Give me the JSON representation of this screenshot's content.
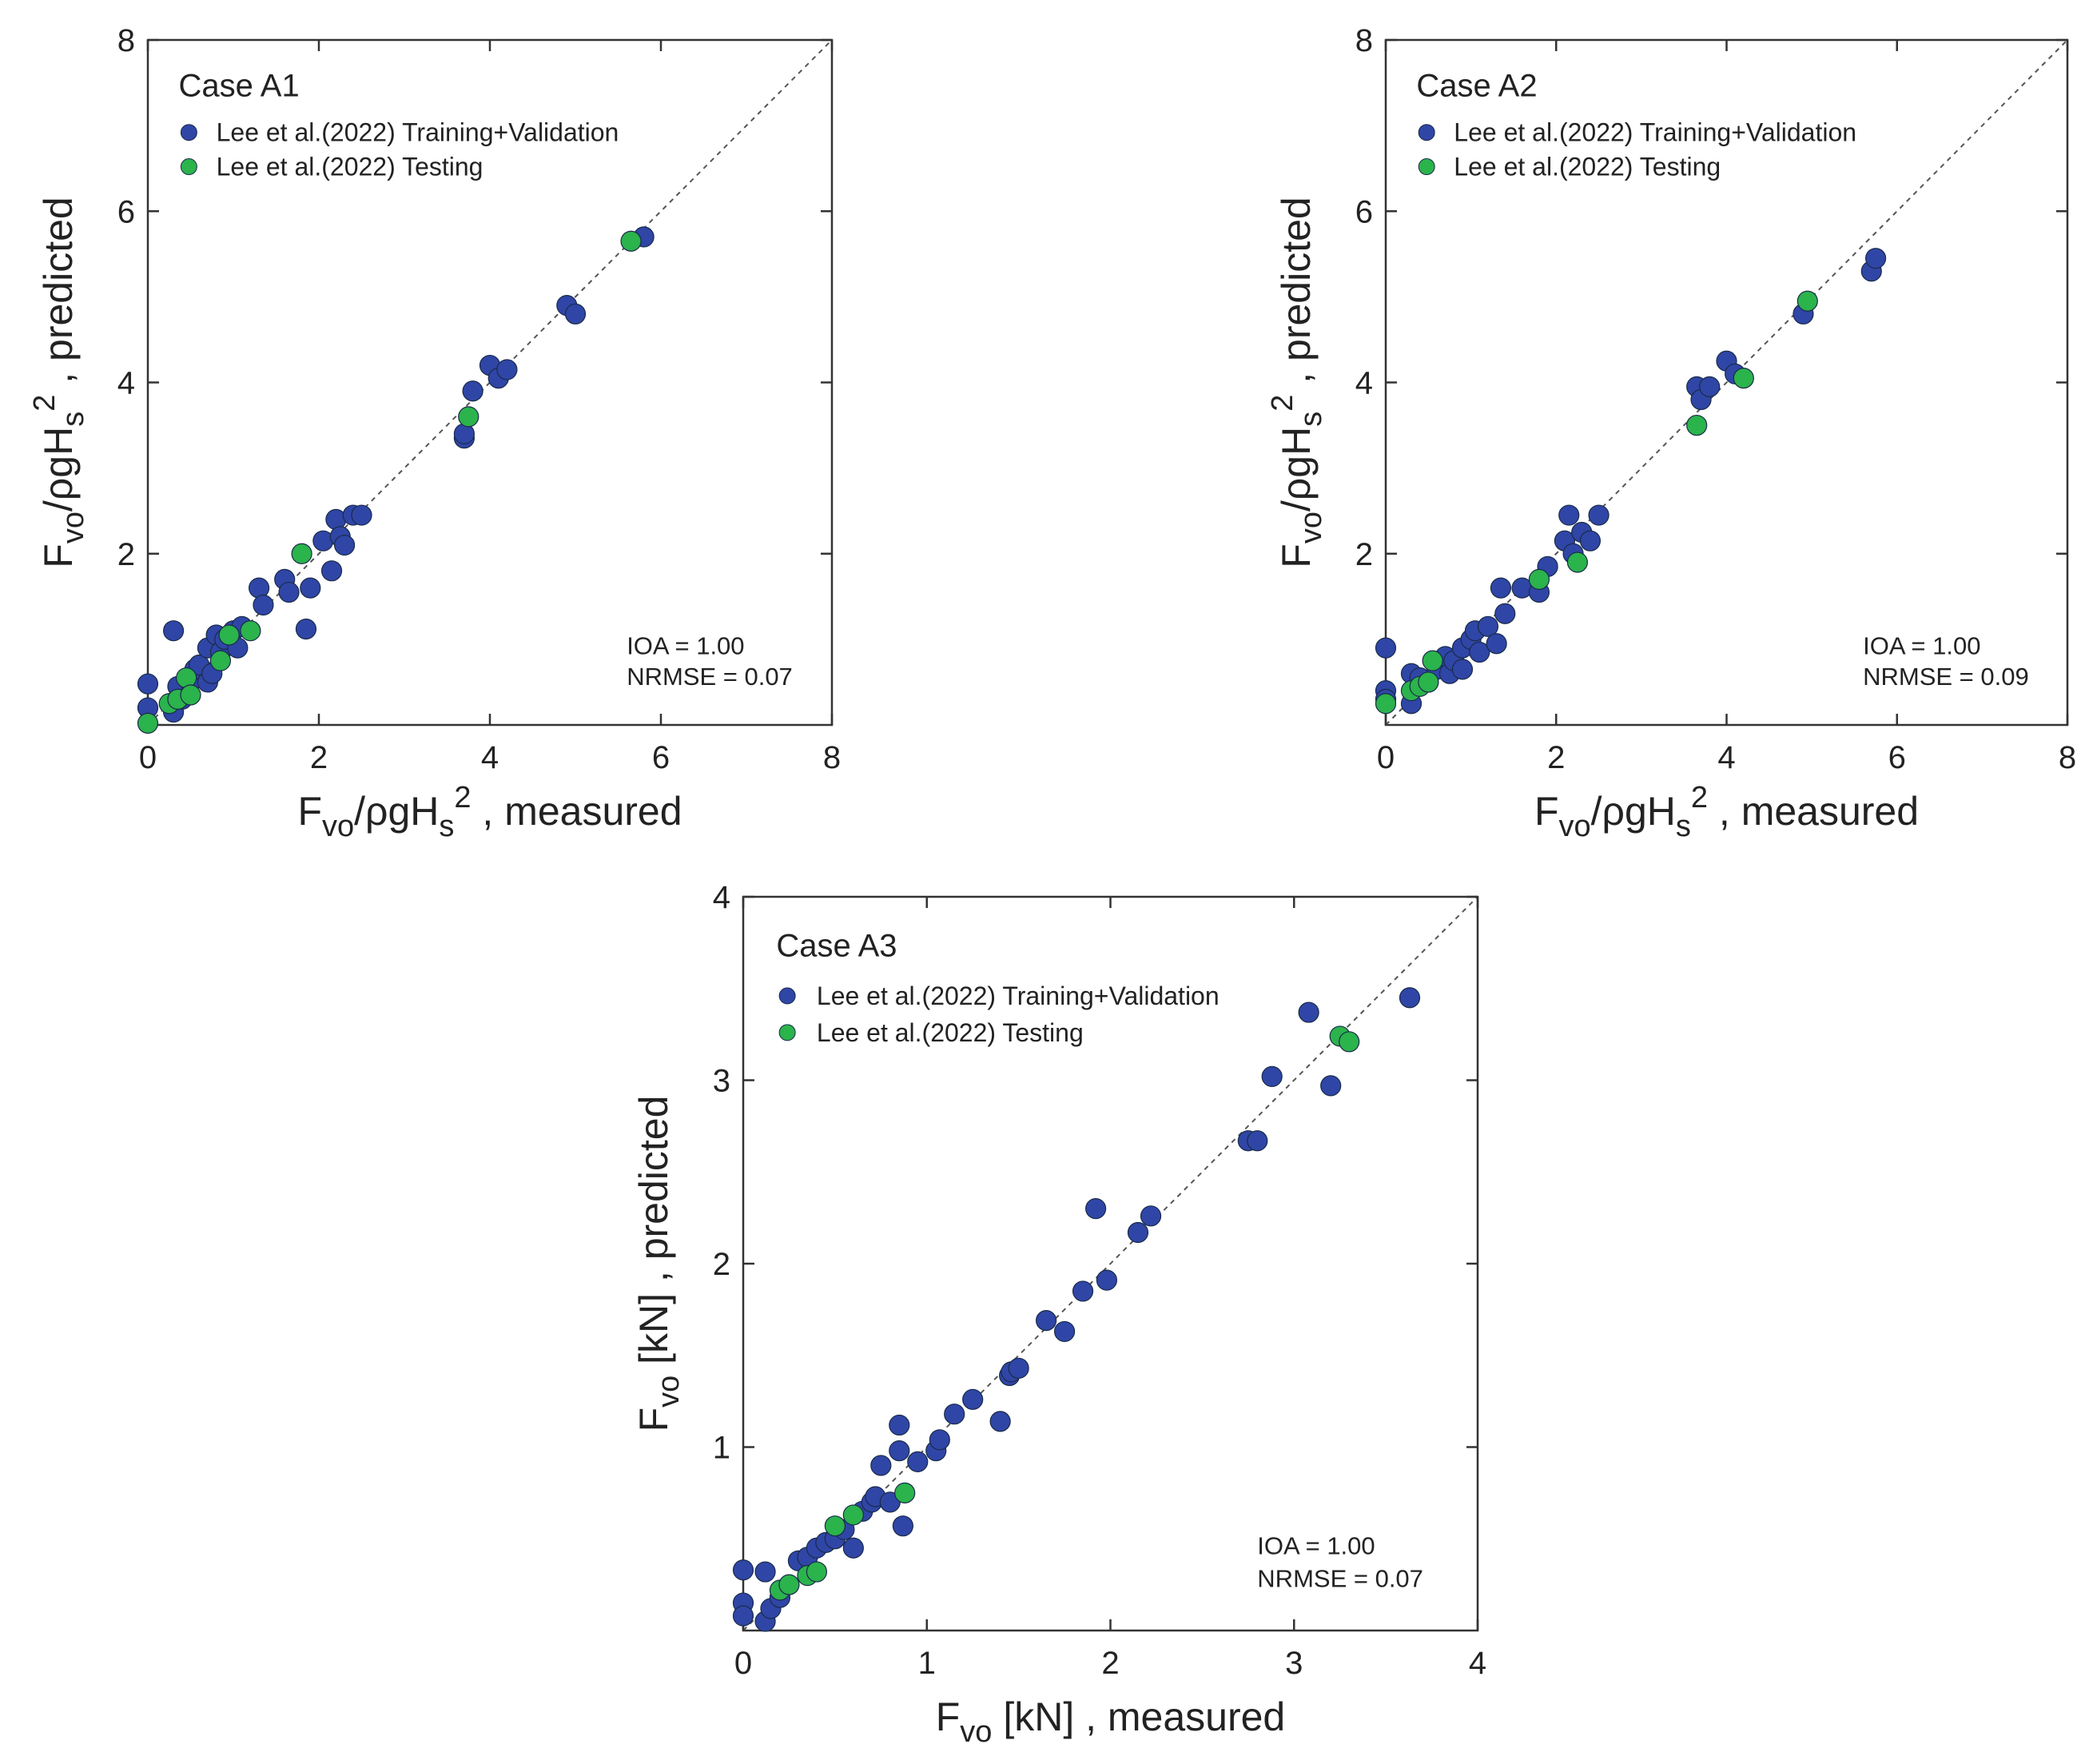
{
  "chart_data": [
    {
      "type": "scatter",
      "title": "Case A1",
      "xlabel": [
        {
          "text": "F"
        },
        {
          "text": "vo",
          "script": "sub"
        },
        {
          "text": "/ρgH"
        },
        {
          "text": "s",
          "script": "sub"
        },
        {
          "text": "2",
          "script": "sup"
        },
        {
          "text": " , measured"
        }
      ],
      "ylabel": [
        {
          "text": "F"
        },
        {
          "text": "vo",
          "script": "sub"
        },
        {
          "text": "/ρgH"
        },
        {
          "text": "s",
          "script": "sub"
        },
        {
          "text": "2",
          "script": "sup"
        },
        {
          "text": " , predicted"
        }
      ],
      "xlim": [
        0,
        8
      ],
      "ylim": [
        0,
        8
      ],
      "xticks": [
        0,
        2,
        4,
        6,
        8
      ],
      "yticks": [
        2,
        4,
        6,
        8
      ],
      "annotations": [
        "IOA = 1.00",
        "NRMSE = 0.07"
      ],
      "legend": "upper left",
      "series": [
        {
          "name": "Lee et al.(2022) Training+Validation",
          "color": "#2f46a6",
          "x": [
            0,
            0,
            0.3,
            0.3,
            0.35,
            0.4,
            0.5,
            0.55,
            0.6,
            0.7,
            0.7,
            0.75,
            0.8,
            0.85,
            0.9,
            1.0,
            1.05,
            1.1,
            1.3,
            1.35,
            1.6,
            1.65,
            1.85,
            1.9,
            2.05,
            2.15,
            2.2,
            2.25,
            2.3,
            2.4,
            2.5,
            3.7,
            3.7,
            3.8,
            4.0,
            4.1,
            4.2,
            4.9,
            5.0,
            5.8
          ],
          "values": [
            0.48,
            0.2,
            1.1,
            0.15,
            0.45,
            0.3,
            0.5,
            0.65,
            0.7,
            0.9,
            0.5,
            0.6,
            1.05,
            0.85,
            1.0,
            1.1,
            0.9,
            1.15,
            1.6,
            1.4,
            1.7,
            1.55,
            1.12,
            1.6,
            2.15,
            1.8,
            2.4,
            2.2,
            2.1,
            2.45,
            2.45,
            3.35,
            3.4,
            3.9,
            4.2,
            4.05,
            4.15,
            4.9,
            4.8,
            5.7
          ]
        },
        {
          "name": "Lee et al.(2022) Testing",
          "color": "#2bb34c",
          "x": [
            0,
            0.25,
            0.35,
            0.45,
            0.5,
            0.85,
            0.95,
            1.2,
            1.8,
            3.75,
            5.65
          ],
          "values": [
            0.02,
            0.25,
            0.3,
            0.55,
            0.35,
            0.75,
            1.05,
            1.1,
            2.0,
            3.6,
            5.65
          ]
        }
      ]
    },
    {
      "type": "scatter",
      "title": "Case A2",
      "xlabel": [
        {
          "text": "F"
        },
        {
          "text": "vo",
          "script": "sub"
        },
        {
          "text": "/ρgH"
        },
        {
          "text": "s",
          "script": "sub"
        },
        {
          "text": "2",
          "script": "sup"
        },
        {
          "text": " , measured"
        }
      ],
      "ylabel": [
        {
          "text": "F"
        },
        {
          "text": "vo",
          "script": "sub"
        },
        {
          "text": "/ρgH"
        },
        {
          "text": "s",
          "script": "sub"
        },
        {
          "text": "2",
          "script": "sup"
        },
        {
          "text": " , predicted"
        }
      ],
      "xlim": [
        0,
        8
      ],
      "ylim": [
        0,
        8
      ],
      "xticks": [
        0,
        2,
        4,
        6,
        8
      ],
      "yticks": [
        2,
        4,
        6,
        8
      ],
      "annotations": [
        "IOA = 1.00",
        "NRMSE = 0.09"
      ],
      "legend": "upper left",
      "series": [
        {
          "name": "Lee et al.(2022) Training+Validation",
          "color": "#2f46a6",
          "x": [
            0,
            0,
            0,
            0.3,
            0.3,
            0.4,
            0.5,
            0.6,
            0.7,
            0.75,
            0.8,
            0.9,
            0.9,
            1.0,
            1.05,
            1.1,
            1.2,
            1.3,
            1.35,
            1.4,
            1.6,
            1.8,
            1.9,
            2.1,
            2.15,
            2.2,
            2.3,
            2.4,
            2.5,
            3.65,
            3.7,
            3.8,
            4.0,
            4.1,
            4.9,
            5.7,
            5.75
          ],
          "values": [
            0.9,
            0.4,
            0.3,
            0.6,
            0.25,
            0.55,
            0.5,
            0.65,
            0.8,
            0.6,
            0.75,
            0.9,
            0.65,
            1.0,
            1.1,
            0.85,
            1.15,
            0.95,
            1.6,
            1.3,
            1.6,
            1.55,
            1.85,
            2.15,
            2.45,
            2.0,
            2.25,
            2.15,
            2.45,
            3.95,
            3.8,
            3.95,
            4.25,
            4.1,
            4.8,
            5.3,
            5.45
          ]
        },
        {
          "name": "Lee et al.(2022) Testing",
          "color": "#2bb34c",
          "x": [
            0,
            0.3,
            0.4,
            0.5,
            0.55,
            1.8,
            2.25,
            3.65,
            4.2,
            4.95
          ],
          "values": [
            0.25,
            0.4,
            0.45,
            0.5,
            0.75,
            1.7,
            1.9,
            3.5,
            4.05,
            4.95
          ]
        }
      ]
    },
    {
      "type": "scatter",
      "title": "Case A3",
      "xlabel": [
        {
          "text": "F"
        },
        {
          "text": "vo",
          "script": "sub"
        },
        {
          "text": " [kN] , measured"
        }
      ],
      "ylabel": [
        {
          "text": "F"
        },
        {
          "text": "vo",
          "script": "sub"
        },
        {
          "text": " [kN] , predicted"
        }
      ],
      "xlim": [
        0,
        4
      ],
      "ylim": [
        0,
        4
      ],
      "xticks": [
        0,
        1,
        2,
        3,
        4
      ],
      "yticks": [
        1,
        2,
        3,
        4
      ],
      "annotations": [
        "IOA = 1.00",
        "NRMSE = 0.07"
      ],
      "legend": "upper left",
      "series": [
        {
          "name": "Lee et al.(2022) Training+Validation",
          "color": "#2f46a6",
          "x": [
            0,
            0,
            0,
            0.12,
            0.12,
            0.15,
            0.2,
            0.3,
            0.35,
            0.4,
            0.45,
            0.5,
            0.55,
            0.6,
            0.65,
            0.7,
            0.72,
            0.75,
            0.8,
            0.85,
            0.85,
            0.87,
            0.95,
            1.05,
            1.07,
            1.15,
            1.25,
            1.4,
            1.45,
            1.46,
            1.5,
            1.65,
            1.75,
            1.85,
            1.92,
            1.98,
            2.15,
            2.22,
            2.75,
            2.8,
            2.88,
            3.08,
            3.2,
            3.63
          ],
          "values": [
            0.33,
            0.15,
            0.08,
            0.32,
            0.05,
            0.12,
            0.18,
            0.38,
            0.4,
            0.45,
            0.48,
            0.5,
            0.55,
            0.45,
            0.65,
            0.7,
            0.73,
            0.9,
            0.7,
            1.12,
            0.98,
            0.57,
            0.92,
            0.98,
            1.04,
            1.18,
            1.26,
            1.14,
            1.39,
            1.41,
            1.43,
            1.69,
            1.63,
            1.85,
            2.3,
            1.91,
            2.17,
            2.26,
            2.67,
            2.67,
            3.02,
            3.37,
            2.97,
            3.45
          ]
        },
        {
          "name": "Lee et al.(2022) Testing",
          "color": "#2bb34c",
          "x": [
            0.2,
            0.25,
            0.35,
            0.4,
            0.5,
            0.6,
            0.88,
            3.25,
            3.3
          ],
          "values": [
            0.22,
            0.25,
            0.3,
            0.32,
            0.57,
            0.63,
            0.75,
            3.24,
            3.21
          ]
        }
      ]
    }
  ]
}
